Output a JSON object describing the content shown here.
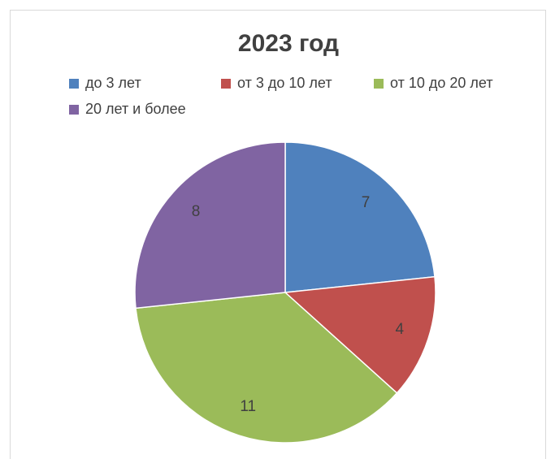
{
  "chart_data": {
    "type": "pie",
    "title": "2023 год",
    "categories": [
      "до 3 лет",
      "от 3 до 10 лет",
      "от 10 до 20 лет",
      "20 лет и более"
    ],
    "values": [
      7,
      4,
      11,
      8
    ],
    "colors": [
      "#4f81bd",
      "#c0504d",
      "#9bbb59",
      "#8064a2"
    ],
    "legend": "top"
  }
}
